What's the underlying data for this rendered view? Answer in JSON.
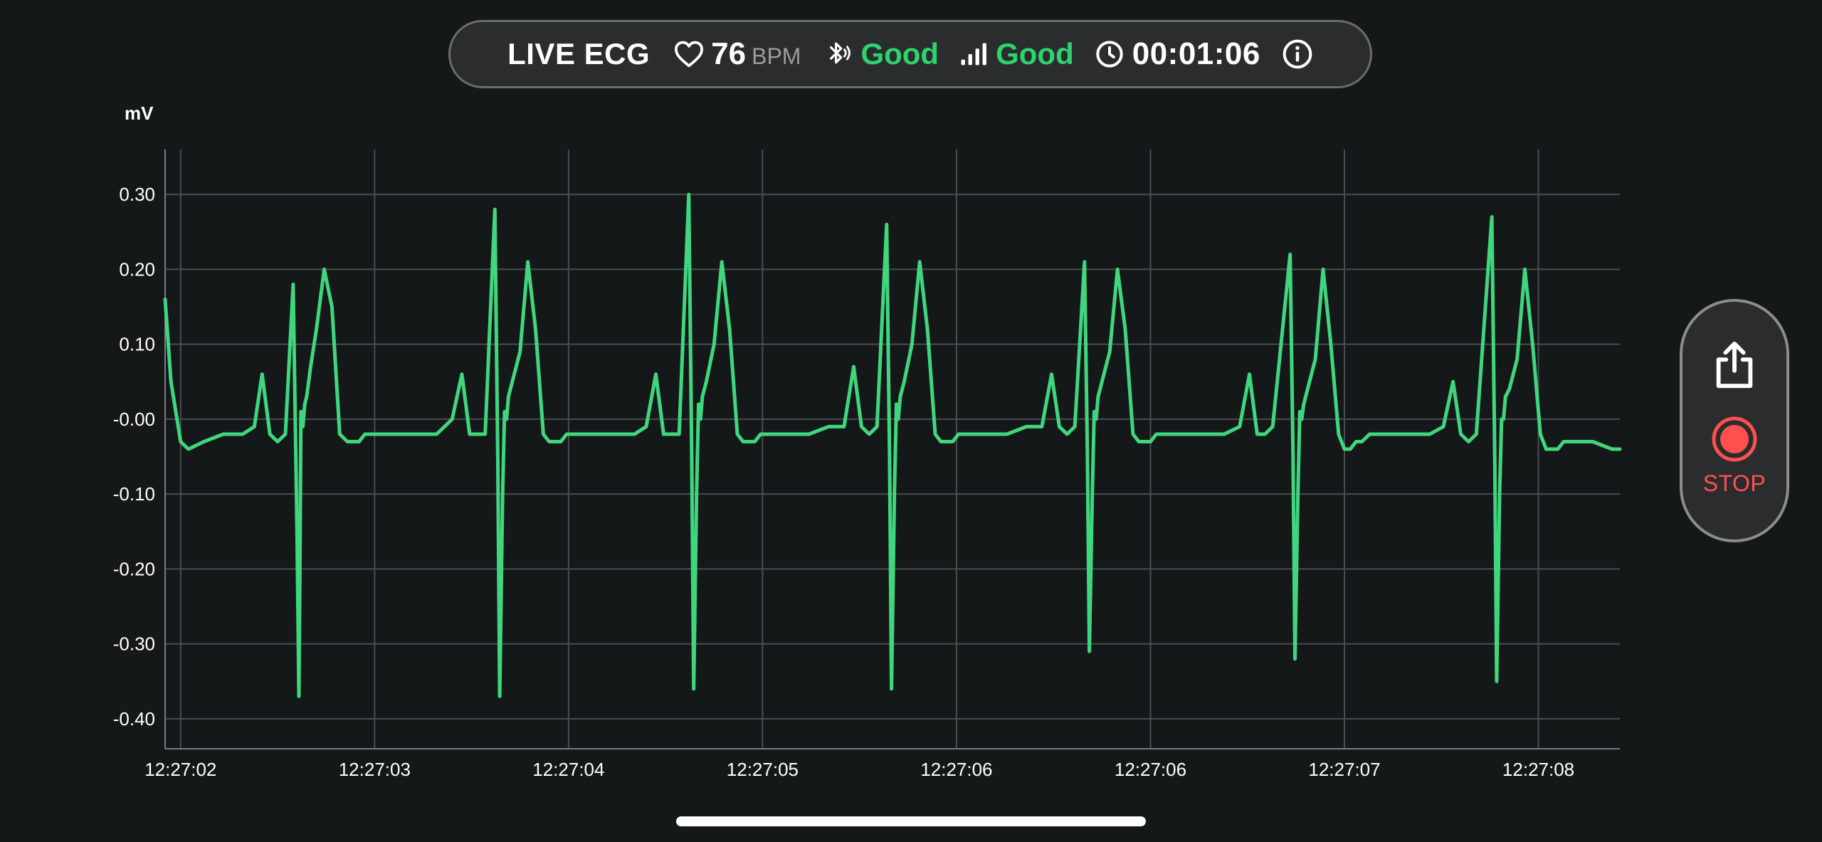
{
  "status_bar": {
    "title": "LIVE ECG",
    "heart_rate": "76",
    "heart_rate_unit": "BPM",
    "bluetooth_status": "Good",
    "signal_status": "Good",
    "elapsed_time": "00:01:06"
  },
  "icons": {
    "heart": "heart-icon",
    "bluetooth": "bluetooth-icon",
    "signal": "signal-bars-icon",
    "clock": "clock-icon",
    "info": "info-icon",
    "share": "share-icon",
    "stop": "stop-record-icon"
  },
  "colors": {
    "trace": "#3fd67e",
    "good": "#2ed26f",
    "stop": "#ff4f4f",
    "background": "#151819",
    "grid": "#4a4d4f"
  },
  "controls": {
    "stop_label": "STOP"
  },
  "chart_data": {
    "type": "line",
    "ylabel": "mV",
    "ylim": [
      -0.44,
      0.36
    ],
    "y_ticks": [
      0.3,
      0.2,
      0.1,
      0.0,
      -0.1,
      -0.2,
      -0.3,
      -0.4
    ],
    "y_tick_labels": [
      "0.30",
      "0.20",
      "0.10",
      "-0.00",
      "-0.10",
      "-0.20",
      "-0.30",
      "-0.40"
    ],
    "x_tick_labels": [
      "12:27:02",
      "12:27:03",
      "12:27:04",
      "12:27:05",
      "12:27:06",
      "12:27:06",
      "12:27:07",
      "12:27:08"
    ],
    "grid": true,
    "series": [
      {
        "x": [
          0.0,
          0.03,
          0.08,
          0.12,
          0.2,
          0.3,
          0.4,
          0.46,
          0.5,
          0.54,
          0.58,
          0.62,
          0.66,
          0.68,
          0.69,
          0.695,
          0.7,
          0.71,
          0.72,
          0.73,
          0.74,
          0.75,
          0.78,
          0.82,
          0.86,
          0.9,
          0.94,
          0.97,
          1.0,
          1.03,
          1.06,
          1.1,
          1.14,
          1.2,
          1.3,
          1.4,
          1.48,
          1.53,
          1.57,
          1.61,
          1.65,
          1.7,
          1.715,
          1.725,
          1.74,
          1.75,
          1.76,
          1.77,
          1.79,
          1.83,
          1.87,
          1.91,
          1.95,
          1.98,
          2.01,
          2.04,
          2.07,
          2.11,
          2.15,
          2.22,
          2.32,
          2.42,
          2.48,
          2.53,
          2.57,
          2.61,
          2.65,
          2.7,
          2.715,
          2.725,
          2.74,
          2.75,
          2.76,
          2.77,
          2.79,
          2.83,
          2.87,
          2.91,
          2.95,
          2.98,
          3.01,
          3.04,
          3.07,
          3.11,
          3.15,
          3.22,
          3.32,
          3.42,
          3.5,
          3.55,
          3.59,
          3.63,
          3.67,
          3.72,
          3.735,
          3.745,
          3.76,
          3.77,
          3.78,
          3.79,
          3.81,
          3.85,
          3.89,
          3.93,
          3.97,
          4.0,
          4.03,
          4.06,
          4.09,
          4.13,
          4.17,
          4.24,
          4.34,
          4.44,
          4.52,
          4.57,
          4.61,
          4.65,
          4.69,
          4.74,
          4.755,
          4.765,
          4.78,
          4.79,
          4.8,
          4.81,
          4.83,
          4.87,
          4.91,
          4.95,
          4.99,
          5.02,
          5.05,
          5.08,
          5.11,
          5.15,
          5.19,
          5.26,
          5.36,
          5.46,
          5.54,
          5.59,
          5.63,
          5.67,
          5.71,
          5.8,
          5.815,
          5.825,
          5.84,
          5.85,
          5.86,
          5.87,
          5.89,
          5.93,
          5.97,
          6.01,
          6.05,
          6.08,
          6.11,
          6.14,
          6.17,
          6.21,
          6.25,
          6.32,
          6.42,
          6.52,
          6.59,
          6.64,
          6.68,
          6.72,
          6.76,
          6.84,
          6.855,
          6.865,
          6.88,
          6.89,
          6.9,
          6.91,
          6.93,
          6.97,
          7.01,
          7.05,
          7.09,
          7.12,
          7.15,
          7.18,
          7.21,
          7.25,
          7.29,
          7.36,
          7.46,
          7.5
        ],
        "y": [
          0.16,
          0.05,
          -0.03,
          -0.04,
          -0.03,
          -0.02,
          -0.02,
          -0.01,
          0.06,
          -0.02,
          -0.03,
          -0.02,
          0.18,
          -0.15,
          -0.37,
          -0.2,
          0.01,
          -0.01,
          0.02,
          0.03,
          0.05,
          0.07,
          0.12,
          0.2,
          0.15,
          -0.02,
          -0.03,
          -0.03,
          -0.03,
          -0.02,
          -0.02,
          -0.02,
          -0.02,
          -0.02,
          -0.02,
          -0.02,
          0.0,
          0.06,
          -0.02,
          -0.02,
          -0.02,
          0.28,
          -0.05,
          -0.37,
          -0.1,
          0.01,
          0.0,
          0.03,
          0.05,
          0.09,
          0.21,
          0.12,
          -0.02,
          -0.03,
          -0.03,
          -0.03,
          -0.02,
          -0.02,
          -0.02,
          -0.02,
          -0.02,
          -0.02,
          -0.01,
          0.06,
          -0.02,
          -0.02,
          -0.02,
          0.3,
          -0.05,
          -0.36,
          -0.1,
          0.02,
          0.0,
          0.03,
          0.05,
          0.1,
          0.21,
          0.12,
          -0.02,
          -0.03,
          -0.03,
          -0.03,
          -0.02,
          -0.02,
          -0.02,
          -0.02,
          -0.02,
          -0.01,
          -0.01,
          0.07,
          -0.01,
          -0.02,
          -0.01,
          0.26,
          -0.05,
          -0.36,
          -0.1,
          0.02,
          0.0,
          0.03,
          0.05,
          0.1,
          0.21,
          0.12,
          -0.02,
          -0.03,
          -0.03,
          -0.03,
          -0.02,
          -0.02,
          -0.02,
          -0.02,
          -0.02,
          -0.01,
          -0.01,
          0.06,
          -0.01,
          -0.02,
          -0.01,
          0.21,
          -0.05,
          -0.31,
          -0.1,
          0.01,
          0.0,
          0.03,
          0.05,
          0.09,
          0.2,
          0.12,
          -0.02,
          -0.03,
          -0.03,
          -0.03,
          -0.02,
          -0.02,
          -0.02,
          -0.02,
          -0.02,
          -0.02,
          -0.01,
          0.06,
          -0.02,
          -0.02,
          -0.01,
          0.22,
          -0.05,
          -0.32,
          -0.1,
          0.01,
          0.0,
          0.02,
          0.04,
          0.08,
          0.2,
          0.1,
          -0.02,
          -0.04,
          -0.04,
          -0.03,
          -0.03,
          -0.02,
          -0.02,
          -0.02,
          -0.02,
          -0.02,
          -0.01,
          0.05,
          -0.02,
          -0.03,
          -0.02,
          0.27,
          -0.05,
          -0.35,
          -0.1,
          0.0,
          0.0,
          0.03,
          0.04,
          0.08,
          0.2,
          0.1,
          -0.02,
          -0.04,
          -0.04,
          -0.04,
          -0.03,
          -0.03,
          -0.03,
          -0.03,
          -0.04,
          -0.04
        ]
      }
    ]
  }
}
